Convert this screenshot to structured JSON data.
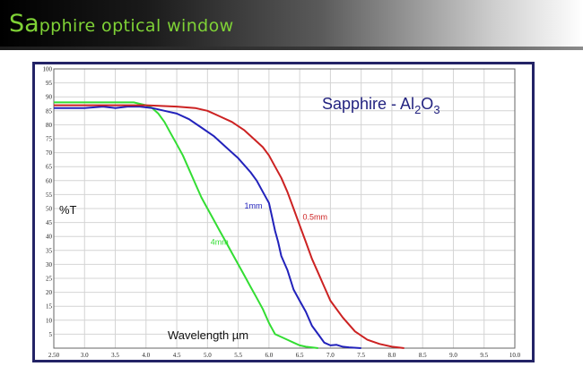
{
  "banner": {
    "title_lead": "Sa",
    "title_rest": "pphire optical window",
    "colors": {
      "title": "#7fd236"
    }
  },
  "chart_data": {
    "type": "line",
    "title": "Sapphire - Al2O3",
    "title_parts": {
      "pre": "Sapphire - Al",
      "sub1": "2",
      "mid": "O",
      "sub2": "3"
    },
    "xlabel": "Wavelength µm",
    "ylabel": "%T",
    "xlim": [
      2.5,
      10.0
    ],
    "ylim": [
      0,
      100
    ],
    "grid": true,
    "x_ticks": [
      "2.50",
      "3.0",
      "3.5",
      "4.0",
      "4.5",
      "5.0",
      "5.5",
      "6.0",
      "6.5",
      "7.0",
      "7.5",
      "8.0",
      "8.5",
      "9.0",
      "9.5",
      "10.0"
    ],
    "y_ticks": [
      "5",
      "10",
      "15",
      "20",
      "25",
      "30",
      "35",
      "40",
      "45",
      "50",
      "55",
      "60",
      "65",
      "70",
      "75",
      "80",
      "85",
      "90",
      "95",
      "100"
    ],
    "series": [
      {
        "name": "4mm",
        "color": "#33dd33",
        "x": [
          2.5,
          3.0,
          3.5,
          3.8,
          4.0,
          4.1,
          4.2,
          4.3,
          4.4,
          4.5,
          4.6,
          4.7,
          4.8,
          4.9,
          5.0,
          5.1,
          5.2,
          5.3,
          5.4,
          5.5,
          5.6,
          5.7,
          5.8,
          5.9,
          6.0,
          6.05,
          6.1,
          6.2,
          6.3,
          6.4,
          6.5,
          6.6,
          6.8
        ],
        "y": [
          88,
          88,
          88,
          88,
          87,
          86,
          84,
          81,
          77,
          73,
          69,
          64,
          59,
          54,
          50,
          46,
          42,
          38,
          34,
          30,
          26,
          22,
          18,
          14,
          9,
          7,
          5,
          4,
          3,
          2,
          1,
          0.5,
          0
        ]
      },
      {
        "name": "1mm",
        "color": "#2222bb",
        "x": [
          2.5,
          3.0,
          3.3,
          3.5,
          3.7,
          3.9,
          4.1,
          4.3,
          4.5,
          4.7,
          4.9,
          5.1,
          5.3,
          5.5,
          5.7,
          5.8,
          5.9,
          6.0,
          6.05,
          6.1,
          6.15,
          6.2,
          6.3,
          6.4,
          6.5,
          6.6,
          6.7,
          6.8,
          6.9,
          7.0,
          7.1,
          7.2,
          7.3,
          7.5
        ],
        "y": [
          86,
          86,
          86.5,
          86,
          86.5,
          86.5,
          86,
          85,
          84,
          82,
          79,
          76,
          72,
          68,
          63,
          60,
          56,
          52,
          47,
          42,
          38,
          33,
          28,
          21,
          17,
          13,
          8,
          5,
          2,
          1,
          1.2,
          0.5,
          0.3,
          0
        ]
      },
      {
        "name": "0.5mm",
        "color": "#cc2222",
        "x": [
          2.5,
          3.0,
          3.5,
          4.0,
          4.5,
          4.8,
          5.0,
          5.2,
          5.4,
          5.6,
          5.8,
          5.9,
          6.0,
          6.1,
          6.2,
          6.3,
          6.4,
          6.5,
          6.6,
          6.7,
          6.8,
          6.9,
          7.0,
          7.2,
          7.4,
          7.6,
          7.8,
          8.0,
          8.2
        ],
        "y": [
          87,
          87,
          87,
          87,
          86.5,
          86,
          85,
          83,
          81,
          78,
          74,
          72,
          69,
          65,
          61,
          56,
          50,
          44,
          38,
          32,
          27,
          22,
          17,
          11,
          6,
          3,
          1.5,
          0.5,
          0
        ]
      }
    ]
  }
}
